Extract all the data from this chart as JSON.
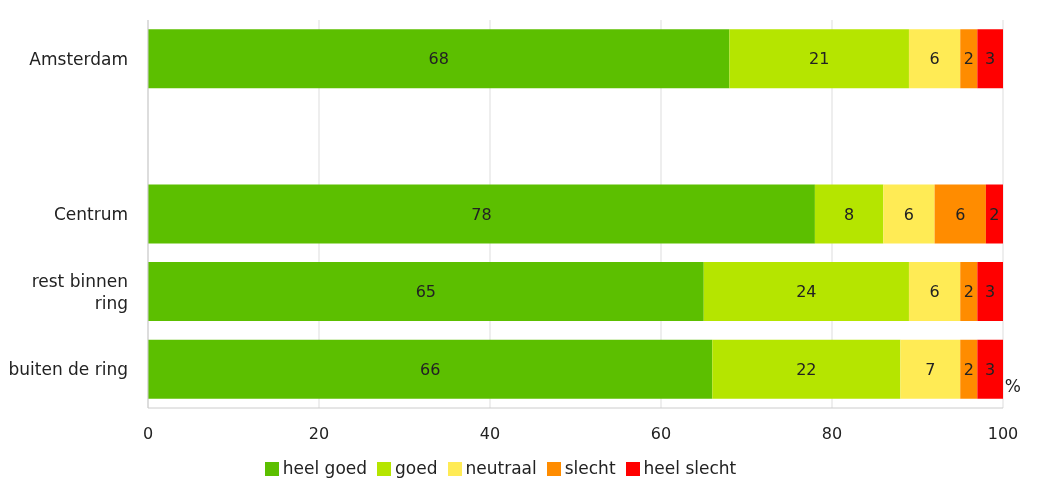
{
  "chart_data": {
    "type": "bar",
    "orientation": "horizontal",
    "stacked": true,
    "categories": [
      "Amsterdam",
      null,
      "Centrum",
      "rest binnen ring",
      "buiten de ring"
    ],
    "series": [
      {
        "name": "heel goed",
        "color": "#5cbf00",
        "values": [
          68,
          null,
          78,
          65,
          66
        ]
      },
      {
        "name": "goed",
        "color": "#b5e500",
        "values": [
          21,
          null,
          8,
          24,
          22
        ]
      },
      {
        "name": "neutraal",
        "color": "#ffeb55",
        "values": [
          6,
          null,
          6,
          6,
          7
        ]
      },
      {
        "name": "slecht",
        "color": "#ff8c00",
        "values": [
          2,
          null,
          6,
          2,
          2
        ]
      },
      {
        "name": "heel slecht",
        "color": "#ff0000",
        "values": [
          3,
          null,
          2,
          3,
          3
        ]
      }
    ],
    "xlim": [
      0,
      100
    ],
    "xticks": [
      0,
      20,
      40,
      60,
      80,
      100
    ],
    "xlabel": "%",
    "grid": "x",
    "legend": "bottom",
    "data_labels": true
  }
}
